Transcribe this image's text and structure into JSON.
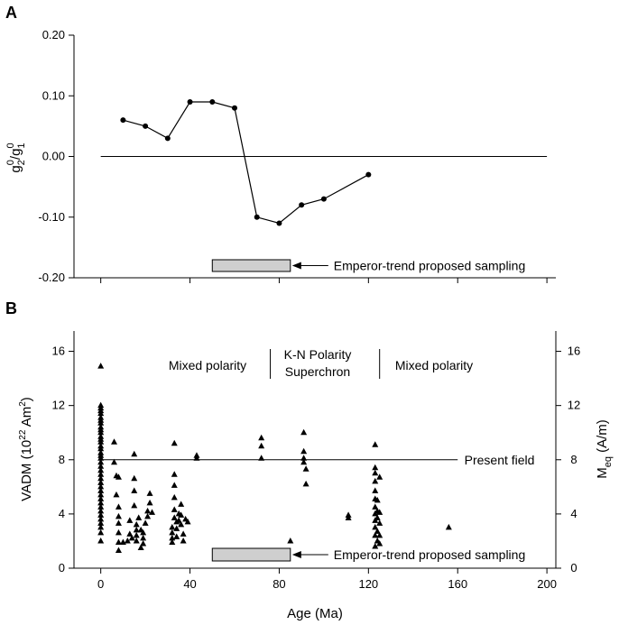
{
  "chart_data": [
    {
      "type": "line",
      "panel_label": "A",
      "ylabel_parts": {
        "g": "g",
        "sup0": "0",
        "sub2": "2",
        "slash": "/",
        "g1": "g",
        "sup1": "0",
        "sub1": "1"
      },
      "ylim": [
        -0.2,
        0.2
      ],
      "yticks": [
        0.2,
        0.1,
        0.0,
        -0.1,
        -0.2
      ],
      "ytick_labels": [
        "0.20",
        "0.10",
        "0.00",
        "-0.10",
        "-0.20"
      ],
      "xlim": [
        -12,
        204
      ],
      "xticks": [
        0,
        40,
        80,
        120,
        160,
        200
      ],
      "grid": false,
      "reference_line": {
        "y": 0.0,
        "x_start": 0,
        "x_end": 200
      },
      "series": [
        {
          "x": [
            10,
            20,
            30,
            40,
            50,
            60,
            70,
            80,
            90,
            100,
            120
          ],
          "y": [
            0.06,
            0.05,
            0.03,
            0.09,
            0.09,
            0.08,
            -0.1,
            -0.11,
            -0.08,
            -0.07,
            -0.03
          ]
        }
      ],
      "sampling_bar": {
        "x_start": 50,
        "x_end": 85,
        "label": "Emperor-trend proposed sampling"
      }
    },
    {
      "type": "scatter",
      "panel_label": "B",
      "ylabel_parts": {
        "main": "VADM (10",
        "sup": "22",
        "rest": " Am",
        "sup2": "2",
        "close": ")"
      },
      "ylabel_right_parts": {
        "m": "M",
        "sub": "eq",
        "rest": " (A/m)"
      },
      "xlabel": "Age (Ma)",
      "xlim": [
        -12,
        204
      ],
      "ylim": [
        0,
        17.5
      ],
      "xticks": [
        0,
        40,
        80,
        120,
        160,
        200
      ],
      "xtick_labels": [
        "0",
        "40",
        "80",
        "120",
        "160",
        "200"
      ],
      "yticks": [
        0,
        4,
        8,
        12,
        16
      ],
      "ytick_labels": [
        "0",
        "4",
        "8",
        "12",
        "16"
      ],
      "grid": false,
      "present_field": {
        "y": 8,
        "label": "Present field"
      },
      "region_labels": {
        "mixed_left": "Mixed polarity",
        "kn_line1": "K-N Polarity",
        "kn_line2": "Superchron",
        "mixed_right": "Mixed polarity"
      },
      "region_dividers_x": [
        76,
        125
      ],
      "sampling_bar": {
        "x_start": 50,
        "x_end": 85,
        "label": "Emperor-trend proposed sampling"
      },
      "points": [
        [
          0,
          14.9
        ],
        [
          0,
          12.0
        ],
        [
          0,
          11.8
        ],
        [
          0,
          11.6
        ],
        [
          0,
          11.4
        ],
        [
          0,
          11.1
        ],
        [
          0,
          10.9
        ],
        [
          0,
          10.7
        ],
        [
          0,
          10.4
        ],
        [
          0,
          10.2
        ],
        [
          0,
          10.0
        ],
        [
          0,
          9.7
        ],
        [
          0,
          9.5
        ],
        [
          0,
          9.3
        ],
        [
          0,
          9.0
        ],
        [
          0,
          8.8
        ],
        [
          0,
          8.5
        ],
        [
          0,
          8.3
        ],
        [
          0,
          8.1
        ],
        [
          0,
          7.8
        ],
        [
          0,
          7.5
        ],
        [
          0,
          7.2
        ],
        [
          0,
          6.9
        ],
        [
          0,
          6.6
        ],
        [
          0,
          6.3
        ],
        [
          0,
          6.0
        ],
        [
          0,
          5.7
        ],
        [
          0,
          5.4
        ],
        [
          0,
          5.1
        ],
        [
          0,
          4.8
        ],
        [
          0,
          4.5
        ],
        [
          0,
          4.2
        ],
        [
          0,
          3.9
        ],
        [
          0,
          3.6
        ],
        [
          0,
          3.3
        ],
        [
          0,
          3.0
        ],
        [
          0,
          2.6
        ],
        [
          0,
          2.0
        ],
        [
          6,
          9.3
        ],
        [
          6,
          7.8
        ],
        [
          7,
          6.8
        ],
        [
          8,
          6.7
        ],
        [
          7,
          5.4
        ],
        [
          8,
          4.5
        ],
        [
          8,
          3.8
        ],
        [
          8,
          3.3
        ],
        [
          8,
          2.6
        ],
        [
          8,
          1.9
        ],
        [
          8,
          1.3
        ],
        [
          10,
          1.9
        ],
        [
          12,
          2.0
        ],
        [
          13,
          3.5
        ],
        [
          13,
          2.5
        ],
        [
          14,
          2.2
        ],
        [
          15,
          8.4
        ],
        [
          15,
          6.6
        ],
        [
          15,
          5.7
        ],
        [
          15,
          4.6
        ],
        [
          16,
          3.2
        ],
        [
          16,
          2.8
        ],
        [
          16,
          2.4
        ],
        [
          16,
          2.0
        ],
        [
          17,
          3.7
        ],
        [
          18,
          2.8
        ],
        [
          18,
          1.5
        ],
        [
          19,
          2.6
        ],
        [
          19,
          2.2
        ],
        [
          19,
          1.8
        ],
        [
          20,
          3.3
        ],
        [
          21,
          4.2
        ],
        [
          21,
          3.8
        ],
        [
          22,
          5.5
        ],
        [
          22,
          4.8
        ],
        [
          23,
          4.1
        ],
        [
          32,
          3.0
        ],
        [
          32,
          2.6
        ],
        [
          32,
          2.2
        ],
        [
          32,
          1.9
        ],
        [
          33,
          9.2
        ],
        [
          33,
          6.9
        ],
        [
          33,
          6.1
        ],
        [
          33,
          5.2
        ],
        [
          33,
          4.3
        ],
        [
          33,
          3.7
        ],
        [
          34,
          3.4
        ],
        [
          34,
          2.9
        ],
        [
          34,
          2.3
        ],
        [
          35,
          4.0
        ],
        [
          35,
          3.5
        ],
        [
          36,
          4.7
        ],
        [
          36,
          3.9
        ],
        [
          36,
          3.2
        ],
        [
          37,
          2.5
        ],
        [
          37,
          2.0
        ],
        [
          38,
          3.6
        ],
        [
          39,
          3.4
        ],
        [
          43,
          8.3
        ],
        [
          43,
          8.1
        ],
        [
          72,
          9.6
        ],
        [
          72,
          9.0
        ],
        [
          72,
          8.1
        ],
        [
          85,
          2.0
        ],
        [
          91,
          10.0
        ],
        [
          91,
          8.6
        ],
        [
          91,
          8.1
        ],
        [
          91,
          7.8
        ],
        [
          92,
          7.3
        ],
        [
          92,
          6.2
        ],
        [
          111,
          3.9
        ],
        [
          111,
          3.7
        ],
        [
          123,
          9.1
        ],
        [
          123,
          7.4
        ],
        [
          123,
          7.0
        ],
        [
          123,
          6.4
        ],
        [
          123,
          5.7
        ],
        [
          123,
          5.1
        ],
        [
          123,
          4.5
        ],
        [
          123,
          4.0
        ],
        [
          123,
          3.5
        ],
        [
          123,
          3.0
        ],
        [
          123,
          2.4
        ],
        [
          123,
          1.6
        ],
        [
          124,
          5.0
        ],
        [
          124,
          4.2
        ],
        [
          124,
          3.7
        ],
        [
          124,
          2.7
        ],
        [
          124,
          2.0
        ],
        [
          125,
          6.7
        ],
        [
          125,
          4.1
        ],
        [
          125,
          3.3
        ],
        [
          125,
          2.4
        ],
        [
          125,
          1.8
        ],
        [
          156,
          3.0
        ]
      ]
    }
  ]
}
